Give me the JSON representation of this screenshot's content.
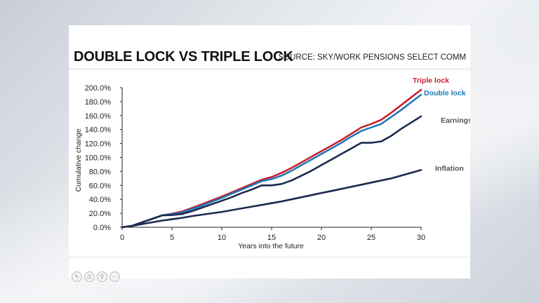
{
  "header": {
    "title": "DOUBLE LOCK VS TRIPLE LOCK",
    "source": "SOURCE: SKY/WORK PENSIONS SELECT COMM"
  },
  "toolbar": {
    "icons": [
      "draw-icon",
      "print-icon",
      "zoom-icon",
      "more-icon"
    ]
  },
  "chart_data": {
    "type": "line",
    "title": "DOUBLE LOCK VS TRIPLE LOCK",
    "xlabel": "Years into the future",
    "ylabel": "Cumulative change",
    "xlim": [
      0,
      30
    ],
    "ylim": [
      0,
      200
    ],
    "xticks": [
      "0",
      "5",
      "10",
      "15",
      "20",
      "25",
      "30"
    ],
    "yticks": [
      "0.0%",
      "20.0%",
      "40.0%",
      "60.0%",
      "80.0%",
      "100.0%",
      "120.0%",
      "140.0%",
      "160.0%",
      "180.0%",
      "200.0%"
    ],
    "grid": false,
    "legend": "end-of-line labels",
    "series": [
      {
        "name": "Triple lock",
        "color": "#c8202f",
        "label_color": "#c8202f",
        "x": [
          0,
          1,
          2,
          3,
          4,
          5,
          6,
          7,
          8,
          9,
          10,
          11,
          12,
          13,
          14,
          15,
          16,
          17,
          18,
          19,
          20,
          21,
          22,
          23,
          24,
          25,
          26,
          27,
          28,
          29,
          30
        ],
        "y": [
          0,
          2,
          7,
          12,
          17,
          19.5,
          22.5,
          27.5,
          33,
          38.5,
          44,
          50,
          56,
          62,
          68,
          72,
          78,
          85,
          93,
          101,
          109,
          117,
          125,
          134,
          143,
          148,
          154,
          164,
          175,
          186,
          197
        ]
      },
      {
        "name": "Double lock",
        "color": "#1f78b8",
        "label_color": "#1f78b8",
        "x": [
          0,
          1,
          2,
          3,
          4,
          5,
          6,
          7,
          8,
          9,
          10,
          11,
          12,
          13,
          14,
          15,
          16,
          17,
          18,
          19,
          20,
          21,
          22,
          23,
          24,
          25,
          26,
          27,
          28,
          29,
          30
        ],
        "y": [
          0,
          2,
          7,
          12,
          17,
          19,
          21,
          26,
          31,
          36.5,
          42,
          48,
          54,
          60,
          66,
          69,
          74,
          81,
          89,
          97,
          105,
          113,
          121,
          130,
          138,
          143,
          148,
          158,
          168,
          179,
          190
        ]
      },
      {
        "name": "Earnings",
        "color": "#1b2a4e",
        "label_color": "#555555",
        "x": [
          0,
          1,
          2,
          3,
          4,
          5,
          6,
          7,
          8,
          9,
          10,
          11,
          12,
          13,
          14,
          15,
          16,
          17,
          18,
          19,
          20,
          21,
          22,
          23,
          24,
          25,
          26,
          27,
          28,
          29,
          30
        ],
        "y": [
          0,
          2,
          7,
          12,
          17,
          17.5,
          19,
          23,
          28,
          33,
          38,
          43,
          49,
          54,
          60,
          60,
          62,
          67,
          74,
          81,
          89,
          97,
          105,
          113,
          121,
          121,
          123,
          131,
          141,
          150,
          159
        ]
      },
      {
        "name": "Inflation",
        "color": "#1b2a4e",
        "label_color": "#555555",
        "x": [
          0,
          1,
          2,
          3,
          4,
          5,
          6,
          7,
          8,
          9,
          10,
          11,
          12,
          13,
          14,
          15,
          16,
          17,
          18,
          19,
          20,
          21,
          22,
          23,
          24,
          25,
          26,
          27,
          28,
          29,
          30
        ],
        "y": [
          0,
          2,
          4.5,
          7,
          9.5,
          11.5,
          13.5,
          16,
          18,
          20,
          22,
          24.5,
          27,
          29.5,
          32,
          34.5,
          37,
          40,
          43,
          46,
          49,
          52,
          55,
          58,
          61,
          64,
          67,
          70,
          74,
          78,
          82
        ]
      }
    ]
  }
}
